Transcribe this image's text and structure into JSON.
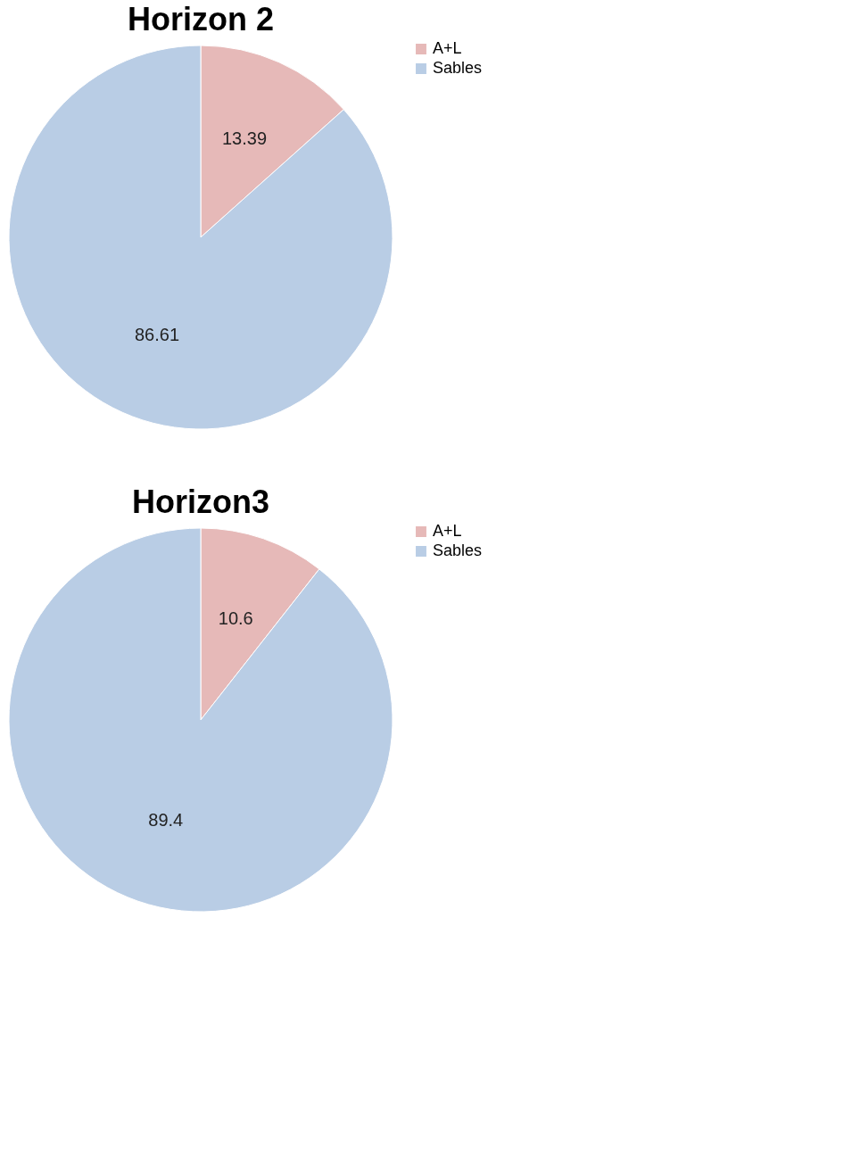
{
  "chart_data": [
    {
      "type": "pie",
      "title": "Horizon 2",
      "categories": [
        "A+L",
        "Sables"
      ],
      "values": [
        13.39,
        86.61
      ],
      "colors": [
        "#e6b9b8",
        "#b9cde5"
      ],
      "data_labels": true,
      "legend": "right"
    },
    {
      "type": "pie",
      "title": "Horizon3",
      "categories": [
        "A+L",
        "Sables"
      ],
      "values": [
        10.6,
        89.4
      ],
      "colors": [
        "#e6b9b8",
        "#b9cde5"
      ],
      "data_labels": true,
      "legend": "right"
    }
  ]
}
